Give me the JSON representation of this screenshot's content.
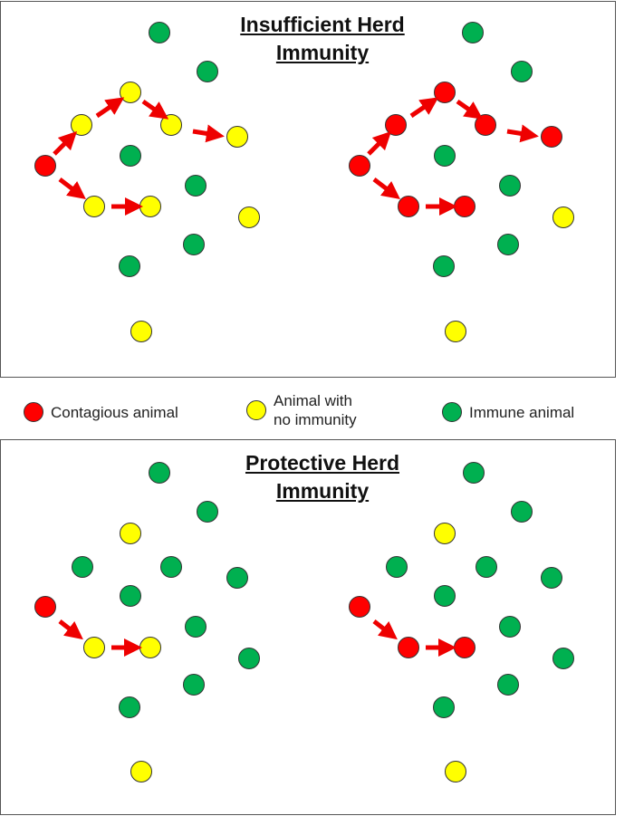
{
  "top_panel": {
    "title_line1": "Insufficient Herd",
    "title_line2": "Immunity"
  },
  "bottom_panel": {
    "title_line1": "Protective Herd",
    "title_line2": "Immunity"
  },
  "legend": {
    "items": [
      {
        "label": "Contagious animal",
        "color": "#ff0000"
      },
      {
        "label": "Animal with no immunity",
        "line1": "Animal with",
        "line2": "no immunity",
        "color": "#ffff00"
      },
      {
        "label": "Immune animal",
        "color": "#00b050"
      }
    ]
  },
  "colors": {
    "contagious": "#ff0000",
    "no_immunity": "#ffff00",
    "immune": "#00b050",
    "arrow": "#ee0000"
  }
}
